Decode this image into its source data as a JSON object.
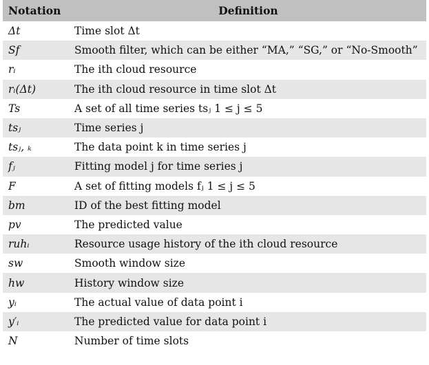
{
  "table": {
    "headers": {
      "notation": "Notation",
      "definition": "Definition"
    },
    "rows": [
      {
        "notation": "Δt",
        "definition": "Time slot Δt"
      },
      {
        "notation": "Sf",
        "definition": "Smooth filter, which can be either “MA,” “SG,” or “No-Smooth”"
      },
      {
        "notation": "rᵢ",
        "definition": "The ith cloud resource"
      },
      {
        "notation": "rᵢ(Δt)",
        "definition": "The ith cloud resource in time slot Δt"
      },
      {
        "notation": "Ts",
        "definition": "A set of all time series tsⱼ 1 ≤ j ≤ 5"
      },
      {
        "notation": "tsⱼ",
        "definition": "Time series j"
      },
      {
        "notation": "tsⱼ, ₖ",
        "definition": "The data point k in time series j"
      },
      {
        "notation": "fⱼ",
        "definition": "Fitting model j for time series j"
      },
      {
        "notation": "F",
        "definition": "A set of fitting models fⱼ 1 ≤ j ≤ 5"
      },
      {
        "notation": "bm",
        "definition": "ID of the best fitting model"
      },
      {
        "notation": "pv",
        "definition": "The predicted value"
      },
      {
        "notation": "ruhᵢ",
        "definition": "Resource usage history of the ith cloud resource"
      },
      {
        "notation": "sw",
        "definition": "Smooth window size"
      },
      {
        "notation": "hw",
        "definition": "History window size"
      },
      {
        "notation": "yᵢ",
        "definition": "The actual value of data point i"
      },
      {
        "notation": "y′ᵢ",
        "definition": "The predicted value for data point i"
      },
      {
        "notation": "N",
        "definition": "Number of time slots"
      }
    ]
  },
  "colors": {
    "header_bg": "#c0c0c0",
    "stripe_bg": "#e6e6e6",
    "row_bg": "#ffffff"
  }
}
